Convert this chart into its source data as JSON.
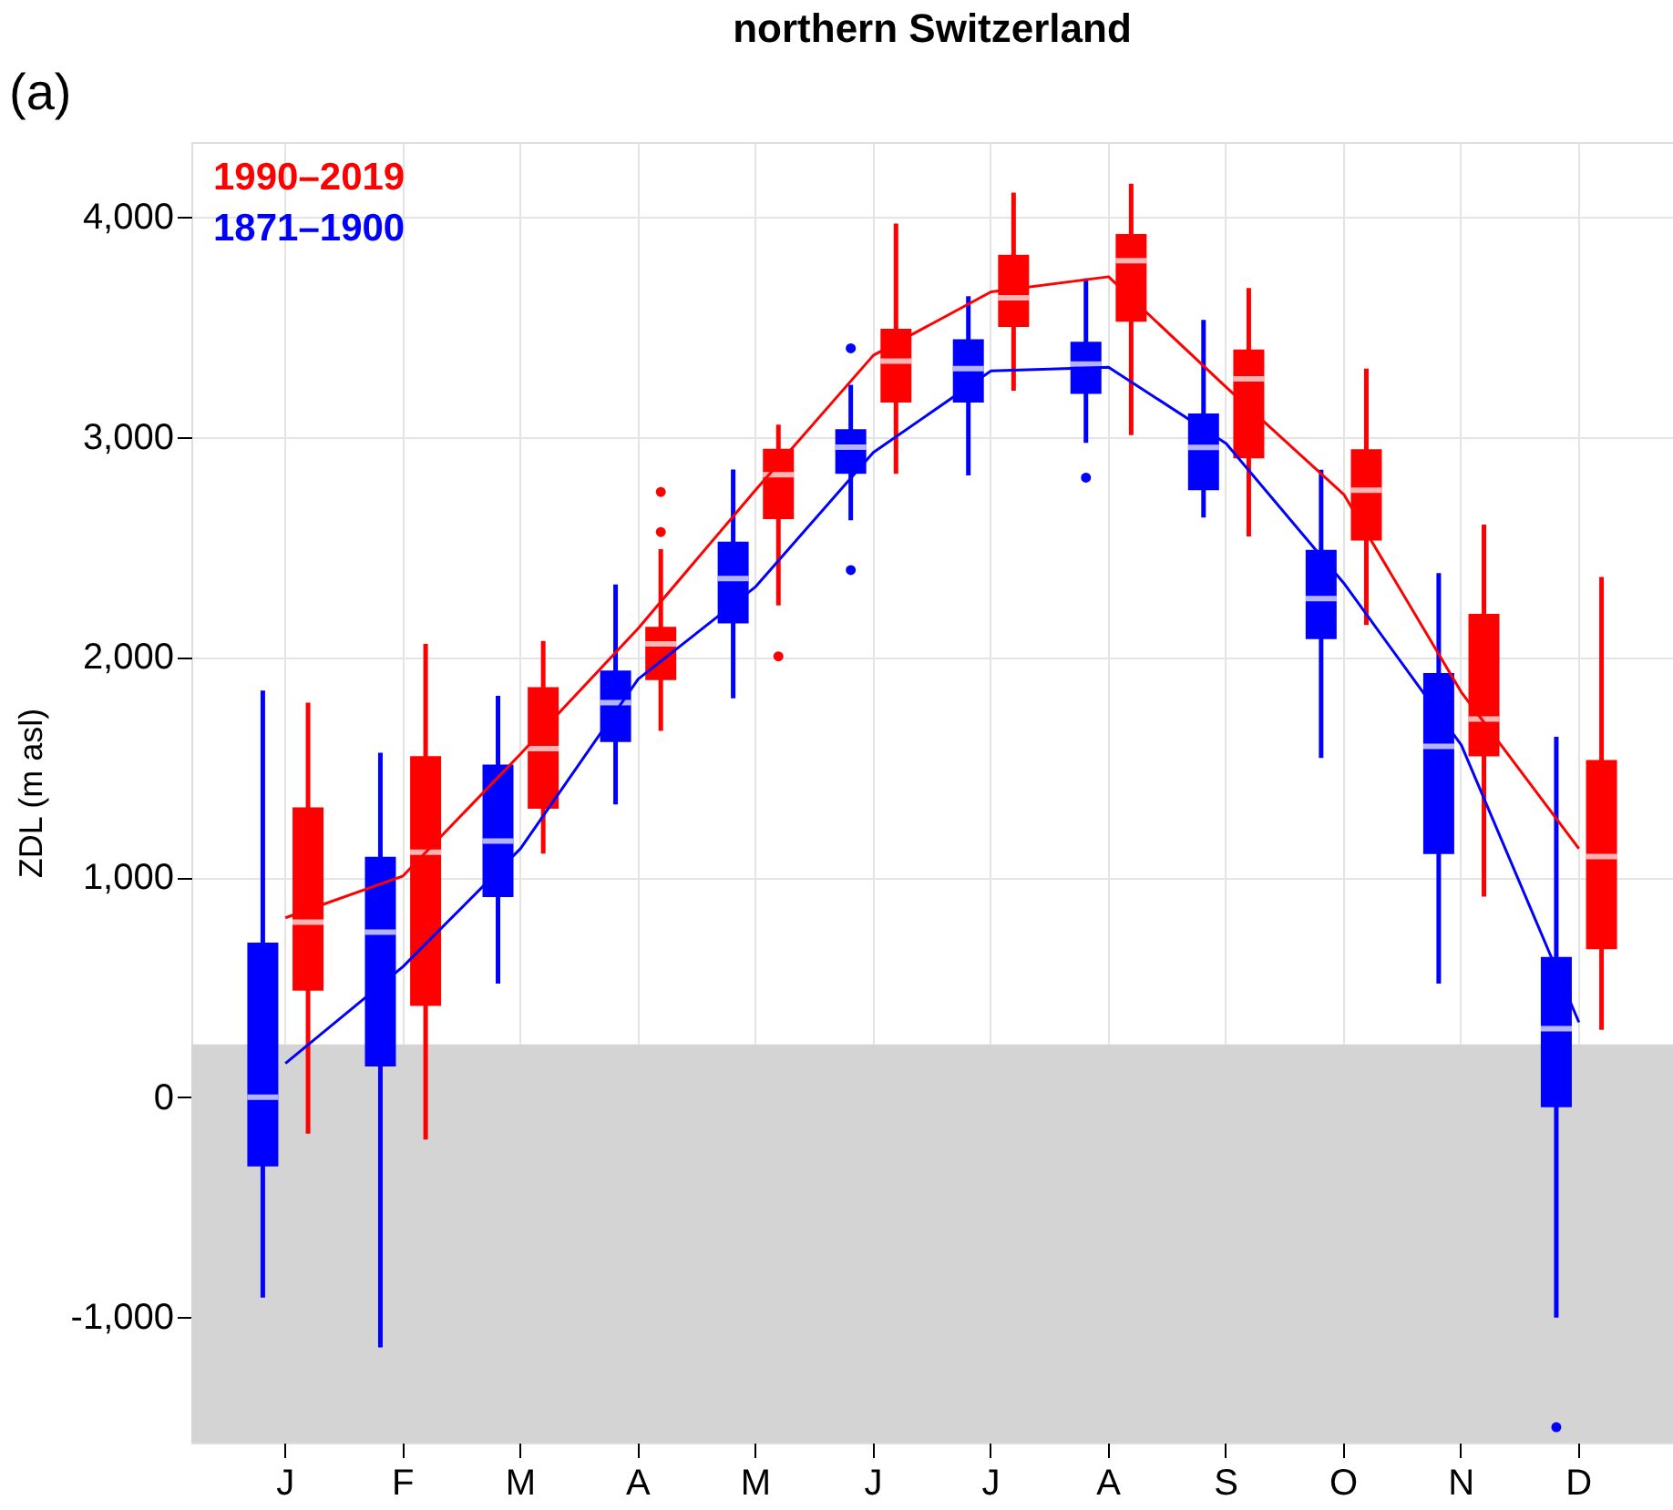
{
  "chart_data": {
    "type": "box",
    "title": "northern Switzerland",
    "ylabel": "ZDL (m asl)",
    "annotations": [
      "(a)"
    ],
    "categories": [
      "J",
      "F",
      "M",
      "A",
      "M",
      "J",
      "J",
      "A",
      "S",
      "O",
      "N",
      "D"
    ],
    "ylim": [
      -1570,
      4340
    ],
    "yticks": [
      {
        "value": -1000,
        "label": "-1,000"
      },
      0,
      {
        "value": 1000,
        "label": "1,000"
      },
      {
        "value": 2000,
        "label": "2,000"
      },
      {
        "value": 3000,
        "label": "3,000"
      },
      {
        "value": 4000,
        "label": "4,000"
      }
    ],
    "grid": true,
    "legend": "top left",
    "bands": [
      {
        "axis": "y",
        "from": -1570,
        "to": 240,
        "color": "#d4d4d4"
      }
    ],
    "series": [
      {
        "name": "1990–2019",
        "color": "#ff0000",
        "boxes": [
          {
            "low": -166,
            "q1": 484,
            "median": 795,
            "q3": 1317,
            "high": 1793
          },
          {
            "low": -193,
            "q1": 414,
            "median": 1113,
            "q3": 1550,
            "high": 2060
          },
          {
            "low": 1107,
            "q1": 1310,
            "median": 1584,
            "q3": 1863,
            "high": 2073
          },
          {
            "low": 1664,
            "q1": 1895,
            "median": 2060,
            "q3": 2137,
            "high": 2490,
            "outliers": [
              2750,
              2568
            ]
          },
          {
            "low": 2234,
            "q1": 2627,
            "median": 2828,
            "q3": 2946,
            "high": 3056,
            "outliers": [
              2003
            ]
          },
          {
            "low": 2833,
            "q1": 3156,
            "median": 3345,
            "q3": 3492,
            "high": 3970
          },
          {
            "low": 3210,
            "q1": 3500,
            "median": 3632,
            "q3": 3828,
            "high": 4110
          },
          {
            "low": 3008,
            "q1": 3524,
            "median": 3801,
            "q3": 3922,
            "high": 4151
          },
          {
            "low": 2548,
            "q1": 2903,
            "median": 3264,
            "q3": 3397,
            "high": 3677
          },
          {
            "low": 2145,
            "q1": 2529,
            "median": 2758,
            "q3": 2944,
            "high": 3310
          },
          {
            "low": 911,
            "q1": 1548,
            "median": 1718,
            "q3": 2196,
            "high": 2602
          },
          {
            "low": 306,
            "q1": 672,
            "median": 1093,
            "q3": 1532,
            "high": 2364
          }
        ]
      },
      {
        "name": "1871–1900",
        "color": "#0000ff",
        "boxes": [
          {
            "low": -911,
            "q1": -315,
            "median": 0,
            "q3": 702,
            "high": 1847
          },
          {
            "low": -1137,
            "q1": 139,
            "median": 750,
            "q3": 1092,
            "high": 1565
          },
          {
            "low": 516,
            "q1": 909,
            "median": 1164,
            "q3": 1511,
            "high": 1824
          },
          {
            "low": 1330,
            "q1": 1614,
            "median": 1793,
            "q3": 1939,
            "high": 2330
          },
          {
            "low": 1812,
            "q1": 2153,
            "median": 2357,
            "q3": 2524,
            "high": 2852
          },
          {
            "low": 2621,
            "q1": 2833,
            "median": 2954,
            "q3": 3035,
            "high": 3237,
            "outliers": [
              3403,
              2395
            ]
          },
          {
            "low": 2825,
            "q1": 3156,
            "median": 3311,
            "q3": 3444,
            "high": 3640
          },
          {
            "low": 2973,
            "q1": 3196,
            "median": 3331,
            "q3": 3433,
            "high": 3720,
            "outliers": [
              2815
            ]
          },
          {
            "low": 2634,
            "q1": 2758,
            "median": 2953,
            "q3": 3107,
            "high": 3532
          },
          {
            "low": 1541,
            "q1": 2081,
            "median": 2266,
            "q3": 2487,
            "high": 2851
          },
          {
            "low": 516,
            "q1": 1105,
            "median": 1594,
            "q3": 1927,
            "high": 2381
          },
          {
            "low": -1002,
            "q1": -46,
            "median": 311,
            "q3": 637,
            "high": 1637,
            "outliers": [
              -1500
            ]
          }
        ]
      },
      {
        "type": "line",
        "color": "#ff0000",
        "values": [
          815,
          1005,
          1560,
          2130,
          2760,
          3371,
          3659,
          3728,
          3226,
          2739,
          1840,
          1129
        ]
      },
      {
        "type": "line",
        "color": "#0000ff",
        "values": [
          153,
          593,
          1130,
          1900,
          2320,
          2930,
          3300,
          3317,
          2970,
          2336,
          1600,
          340
        ]
      }
    ]
  }
}
